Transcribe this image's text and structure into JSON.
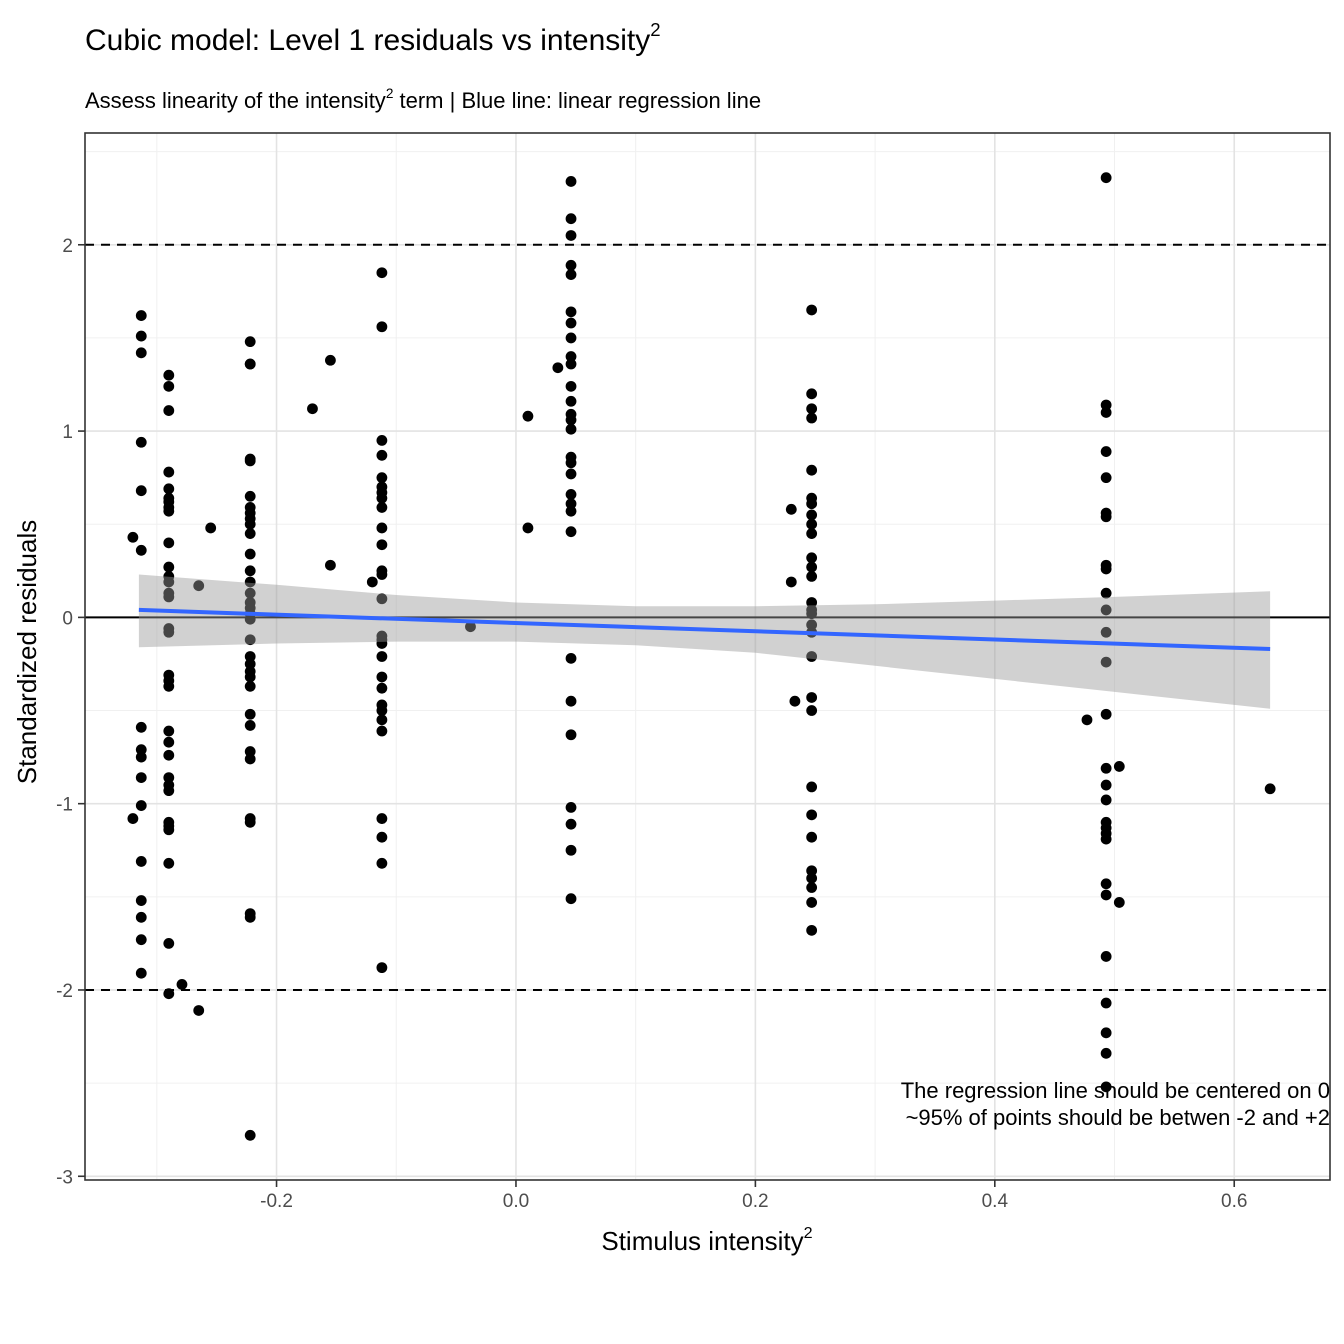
{
  "chart_data": {
    "type": "scatter",
    "title": {
      "main": "Cubic model: Level 1 residuals vs intensity",
      "sup": "2"
    },
    "subtitle": {
      "pre": "Assess linearity of the intensity",
      "sup": "2",
      "post": " term | Blue line: linear regression line"
    },
    "xlabel": {
      "main": "Stimulus intensity",
      "sup": "2"
    },
    "ylabel": "Standardized residuals",
    "caption": [
      "The regression line should be centered on 0",
      "~95% of points should be betwen -2 and +2"
    ],
    "xlim": [
      -0.36,
      0.68
    ],
    "ylim": [
      -3.02,
      2.6
    ],
    "x_ticks": [
      -0.2,
      0.0,
      0.2,
      0.4,
      0.6
    ],
    "x_tick_labels": [
      "-0.2",
      "0.0",
      "0.2",
      "0.4",
      "0.6"
    ],
    "y_ticks": [
      -3,
      -2,
      -1,
      0,
      1,
      2
    ],
    "y_tick_labels": [
      "-3",
      "-2",
      "-1",
      "0",
      "1",
      "2"
    ],
    "reference_lines": {
      "solid": 0,
      "dashed": [
        -2,
        2
      ]
    },
    "grid": true,
    "colors": {
      "points": "#000000",
      "regression_line": "#3366FF",
      "confidence_band": "#999999"
    },
    "regression": {
      "x": [
        -0.315,
        0.63
      ],
      "y": [
        0.04,
        -0.17
      ]
    },
    "confidence_band": {
      "x": [
        -0.315,
        -0.2,
        -0.1,
        0.0,
        0.1,
        0.2,
        0.3,
        0.4,
        0.5,
        0.63
      ],
      "upper": [
        0.23,
        0.175,
        0.12,
        0.08,
        0.06,
        0.06,
        0.07,
        0.09,
        0.11,
        0.14
      ],
      "lower": [
        -0.16,
        -0.14,
        -0.13,
        -0.13,
        -0.15,
        -0.19,
        -0.26,
        -0.33,
        -0.4,
        -0.49
      ]
    },
    "points": [
      [
        -0.32,
        0.43
      ],
      [
        -0.32,
        -1.08
      ],
      [
        -0.313,
        1.62
      ],
      [
        -0.313,
        1.51
      ],
      [
        -0.313,
        1.42
      ],
      [
        -0.313,
        0.94
      ],
      [
        -0.313,
        0.68
      ],
      [
        -0.313,
        0.36
      ],
      [
        -0.313,
        -0.59
      ],
      [
        -0.313,
        -0.71
      ],
      [
        -0.313,
        -0.75
      ],
      [
        -0.313,
        -0.86
      ],
      [
        -0.313,
        -1.01
      ],
      [
        -0.313,
        -1.31
      ],
      [
        -0.313,
        -1.52
      ],
      [
        -0.313,
        -1.61
      ],
      [
        -0.313,
        -1.73
      ],
      [
        -0.313,
        -1.91
      ],
      [
        -0.29,
        1.3
      ],
      [
        -0.29,
        1.24
      ],
      [
        -0.29,
        1.11
      ],
      [
        -0.29,
        0.78
      ],
      [
        -0.29,
        0.69
      ],
      [
        -0.29,
        0.64
      ],
      [
        -0.29,
        0.62
      ],
      [
        -0.29,
        0.59
      ],
      [
        -0.29,
        0.57
      ],
      [
        -0.29,
        0.4
      ],
      [
        -0.29,
        0.27
      ],
      [
        -0.29,
        0.22
      ],
      [
        -0.29,
        0.19
      ],
      [
        -0.29,
        0.13
      ],
      [
        -0.29,
        0.11
      ],
      [
        -0.29,
        -0.06
      ],
      [
        -0.29,
        -0.08
      ],
      [
        -0.29,
        -0.31
      ],
      [
        -0.29,
        -0.34
      ],
      [
        -0.29,
        -0.37
      ],
      [
        -0.29,
        -0.61
      ],
      [
        -0.29,
        -0.67
      ],
      [
        -0.29,
        -0.74
      ],
      [
        -0.29,
        -0.86
      ],
      [
        -0.29,
        -0.9
      ],
      [
        -0.29,
        -0.93
      ],
      [
        -0.29,
        -1.1
      ],
      [
        -0.29,
        -1.12
      ],
      [
        -0.29,
        -1.14
      ],
      [
        -0.29,
        -1.32
      ],
      [
        -0.29,
        -1.75
      ],
      [
        -0.29,
        -2.02
      ],
      [
        -0.279,
        -1.97
      ],
      [
        -0.265,
        0.17
      ],
      [
        -0.265,
        -2.11
      ],
      [
        -0.255,
        0.48
      ],
      [
        -0.222,
        1.48
      ],
      [
        -0.222,
        1.36
      ],
      [
        -0.222,
        1.36
      ],
      [
        -0.222,
        0.85
      ],
      [
        -0.222,
        0.84
      ],
      [
        -0.222,
        0.65
      ],
      [
        -0.222,
        0.59
      ],
      [
        -0.222,
        0.56
      ],
      [
        -0.222,
        0.53
      ],
      [
        -0.222,
        0.5
      ],
      [
        -0.222,
        0.45
      ],
      [
        -0.222,
        0.34
      ],
      [
        -0.222,
        0.25
      ],
      [
        -0.222,
        0.19
      ],
      [
        -0.222,
        0.13
      ],
      [
        -0.222,
        0.08
      ],
      [
        -0.222,
        0.05
      ],
      [
        -0.222,
        0.02
      ],
      [
        -0.222,
        -0.01
      ],
      [
        -0.222,
        -0.12
      ],
      [
        -0.222,
        -0.21
      ],
      [
        -0.222,
        -0.25
      ],
      [
        -0.222,
        -0.29
      ],
      [
        -0.222,
        -0.32
      ],
      [
        -0.222,
        -0.37
      ],
      [
        -0.222,
        -0.52
      ],
      [
        -0.222,
        -0.58
      ],
      [
        -0.222,
        -0.72
      ],
      [
        -0.222,
        -0.76
      ],
      [
        -0.222,
        -1.08
      ],
      [
        -0.222,
        -1.1
      ],
      [
        -0.222,
        -1.59
      ],
      [
        -0.222,
        -1.61
      ],
      [
        -0.222,
        -2.78
      ],
      [
        -0.17,
        1.12
      ],
      [
        -0.155,
        1.38
      ],
      [
        -0.155,
        0.28
      ],
      [
        -0.12,
        0.19
      ],
      [
        -0.112,
        1.85
      ],
      [
        -0.112,
        1.56
      ],
      [
        -0.112,
        0.95
      ],
      [
        -0.112,
        0.87
      ],
      [
        -0.112,
        0.75
      ],
      [
        -0.112,
        0.7
      ],
      [
        -0.112,
        0.67
      ],
      [
        -0.112,
        0.64
      ],
      [
        -0.112,
        0.59
      ],
      [
        -0.112,
        0.48
      ],
      [
        -0.112,
        0.39
      ],
      [
        -0.112,
        0.25
      ],
      [
        -0.112,
        0.23
      ],
      [
        -0.112,
        0.1
      ],
      [
        -0.112,
        -0.1
      ],
      [
        -0.112,
        -0.12
      ],
      [
        -0.112,
        -0.14
      ],
      [
        -0.112,
        -0.21
      ],
      [
        -0.112,
        -0.32
      ],
      [
        -0.112,
        -0.38
      ],
      [
        -0.112,
        -0.47
      ],
      [
        -0.112,
        -0.5
      ],
      [
        -0.112,
        -0.55
      ],
      [
        -0.112,
        -0.61
      ],
      [
        -0.112,
        -1.08
      ],
      [
        -0.112,
        -1.18
      ],
      [
        -0.112,
        -1.32
      ],
      [
        -0.112,
        -1.88
      ],
      [
        -0.038,
        -0.05
      ],
      [
        0.01,
        1.08
      ],
      [
        0.01,
        0.48
      ],
      [
        0.035,
        1.34
      ],
      [
        0.046,
        2.34
      ],
      [
        0.046,
        2.14
      ],
      [
        0.046,
        2.05
      ],
      [
        0.046,
        1.89
      ],
      [
        0.046,
        1.84
      ],
      [
        0.046,
        1.64
      ],
      [
        0.046,
        1.58
      ],
      [
        0.046,
        1.5
      ],
      [
        0.046,
        1.4
      ],
      [
        0.046,
        1.36
      ],
      [
        0.046,
        1.24
      ],
      [
        0.046,
        1.16
      ],
      [
        0.046,
        1.09
      ],
      [
        0.046,
        1.06
      ],
      [
        0.046,
        1.01
      ],
      [
        0.046,
        0.86
      ],
      [
        0.046,
        0.83
      ],
      [
        0.046,
        0.77
      ],
      [
        0.046,
        0.66
      ],
      [
        0.046,
        0.61
      ],
      [
        0.046,
        0.57
      ],
      [
        0.046,
        0.46
      ],
      [
        0.046,
        -0.22
      ],
      [
        0.046,
        -0.45
      ],
      [
        0.046,
        -0.63
      ],
      [
        0.046,
        -1.02
      ],
      [
        0.046,
        -1.11
      ],
      [
        0.046,
        -1.25
      ],
      [
        0.046,
        -1.51
      ],
      [
        0.23,
        0.58
      ],
      [
        0.23,
        0.19
      ],
      [
        0.233,
        -0.45
      ],
      [
        0.247,
        1.65
      ],
      [
        0.247,
        1.2
      ],
      [
        0.247,
        1.12
      ],
      [
        0.247,
        1.07
      ],
      [
        0.247,
        0.79
      ],
      [
        0.247,
        0.64
      ],
      [
        0.247,
        0.61
      ],
      [
        0.247,
        0.55
      ],
      [
        0.247,
        0.5
      ],
      [
        0.247,
        0.45
      ],
      [
        0.247,
        0.32
      ],
      [
        0.247,
        0.27
      ],
      [
        0.247,
        0.22
      ],
      [
        0.247,
        0.08
      ],
      [
        0.247,
        0.04
      ],
      [
        0.247,
        0.02
      ],
      [
        0.247,
        -0.04
      ],
      [
        0.247,
        -0.08
      ],
      [
        0.247,
        -0.21
      ],
      [
        0.247,
        -0.43
      ],
      [
        0.247,
        -0.5
      ],
      [
        0.247,
        -0.91
      ],
      [
        0.247,
        -1.06
      ],
      [
        0.247,
        -1.18
      ],
      [
        0.247,
        -1.36
      ],
      [
        0.247,
        -1.4
      ],
      [
        0.247,
        -1.45
      ],
      [
        0.247,
        -1.53
      ],
      [
        0.247,
        -1.68
      ],
      [
        0.477,
        -0.55
      ],
      [
        0.493,
        2.36
      ],
      [
        0.493,
        1.14
      ],
      [
        0.493,
        1.1
      ],
      [
        0.493,
        0.89
      ],
      [
        0.493,
        0.75
      ],
      [
        0.493,
        0.56
      ],
      [
        0.493,
        0.54
      ],
      [
        0.493,
        0.28
      ],
      [
        0.493,
        0.26
      ],
      [
        0.493,
        0.13
      ],
      [
        0.493,
        0.04
      ],
      [
        0.493,
        -0.08
      ],
      [
        0.493,
        -0.24
      ],
      [
        0.493,
        -0.52
      ],
      [
        0.493,
        -0.81
      ],
      [
        0.493,
        -0.9
      ],
      [
        0.493,
        -0.98
      ],
      [
        0.493,
        -1.1
      ],
      [
        0.493,
        -1.13
      ],
      [
        0.493,
        -1.16
      ],
      [
        0.493,
        -1.19
      ],
      [
        0.493,
        -1.43
      ],
      [
        0.493,
        -1.49
      ],
      [
        0.493,
        -1.82
      ],
      [
        0.493,
        -2.07
      ],
      [
        0.493,
        -2.23
      ],
      [
        0.493,
        -2.34
      ],
      [
        0.493,
        -2.52
      ],
      [
        0.504,
        -0.8
      ],
      [
        0.504,
        -1.53
      ],
      [
        0.63,
        -0.92
      ]
    ]
  }
}
